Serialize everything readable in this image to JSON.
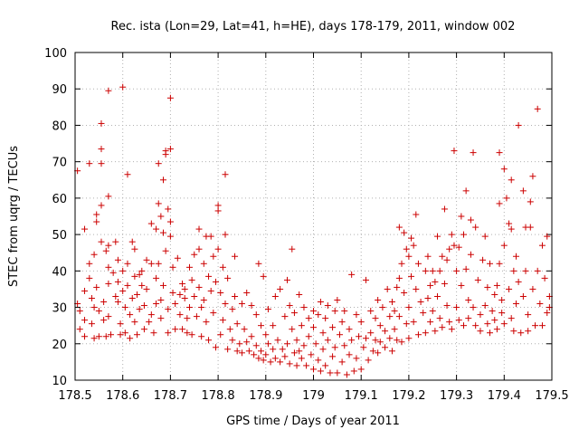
{
  "chart_data": {
    "type": "scatter",
    "title": "Rec. ista (Lon=29, Lat=41, h=HE), days 178-179, 2011, window 002",
    "xlabel": "GPS time / Days of year 2011",
    "ylabel": "STEC from uqrg / TECUs",
    "xlim": [
      178.5,
      179.5
    ],
    "ylim": [
      10,
      100
    ],
    "x_ticks": [
      178.5,
      178.6,
      178.7,
      178.8,
      178.9,
      179.0,
      179.1,
      179.2,
      179.3,
      179.4,
      179.5
    ],
    "x_tick_labels": [
      "178.5",
      "178.6",
      "178.7",
      "178.8",
      "178.9",
      "179",
      "179.1",
      "179.2",
      "179.3",
      "179.4",
      "179.5"
    ],
    "y_ticks": [
      10,
      20,
      30,
      40,
      50,
      60,
      70,
      80,
      90,
      100
    ],
    "y_tick_labels": [
      "10",
      "20",
      "30",
      "40",
      "50",
      "60",
      "70",
      "80",
      "90",
      "100"
    ],
    "grid": "dotted",
    "marker": "+",
    "marker_color": "#cc0000",
    "points": [
      [
        178.505,
        67.5
      ],
      [
        178.505,
        31
      ],
      [
        178.51,
        29
      ],
      [
        178.51,
        24
      ],
      [
        178.52,
        51.5
      ],
      [
        178.52,
        34.5
      ],
      [
        178.52,
        26.5
      ],
      [
        178.52,
        22
      ],
      [
        178.53,
        69.5
      ],
      [
        178.53,
        42
      ],
      [
        178.53,
        38
      ],
      [
        178.535,
        32.5
      ],
      [
        178.535,
        25.5
      ],
      [
        178.54,
        44.5
      ],
      [
        178.54,
        30
      ],
      [
        178.54,
        21.5
      ],
      [
        178.545,
        55.5
      ],
      [
        178.545,
        53.5
      ],
      [
        178.545,
        35.5
      ],
      [
        178.55,
        29
      ],
      [
        178.55,
        22
      ],
      [
        178.555,
        80.5
      ],
      [
        178.555,
        73.5
      ],
      [
        178.555,
        69.5
      ],
      [
        178.555,
        58
      ],
      [
        178.555,
        48
      ],
      [
        178.56,
        31.5
      ],
      [
        178.56,
        26.5
      ],
      [
        178.565,
        45.5
      ],
      [
        178.565,
        22
      ],
      [
        178.57,
        89.5
      ],
      [
        178.57,
        60.5
      ],
      [
        178.57,
        47
      ],
      [
        178.57,
        41
      ],
      [
        178.57,
        36.5
      ],
      [
        178.57,
        27.5
      ],
      [
        178.575,
        22.5
      ],
      [
        178.58,
        39.5
      ],
      [
        178.585,
        48
      ],
      [
        178.585,
        33
      ],
      [
        178.59,
        43
      ],
      [
        178.59,
        37
      ],
      [
        178.59,
        31.5
      ],
      [
        178.595,
        25.5
      ],
      [
        178.595,
        22.5
      ],
      [
        178.6,
        90.5
      ],
      [
        178.6,
        40
      ],
      [
        178.6,
        34.5
      ],
      [
        178.605,
        30
      ],
      [
        178.605,
        23
      ],
      [
        178.61,
        66.5
      ],
      [
        178.61,
        42
      ],
      [
        178.61,
        36
      ],
      [
        178.615,
        28
      ],
      [
        178.615,
        21.5
      ],
      [
        178.62,
        48
      ],
      [
        178.62,
        32.5
      ],
      [
        178.625,
        46
      ],
      [
        178.625,
        38.5
      ],
      [
        178.625,
        26
      ],
      [
        178.63,
        33.5
      ],
      [
        178.63,
        22.5
      ],
      [
        178.635,
        39
      ],
      [
        178.635,
        29.5
      ],
      [
        178.64,
        40
      ],
      [
        178.64,
        36
      ],
      [
        178.645,
        30.5
      ],
      [
        178.645,
        24
      ],
      [
        178.65,
        43
      ],
      [
        178.65,
        35
      ],
      [
        178.655,
        26
      ],
      [
        178.66,
        53
      ],
      [
        178.66,
        42
      ],
      [
        178.66,
        28
      ],
      [
        178.665,
        23
      ],
      [
        178.67,
        51.5
      ],
      [
        178.67,
        38
      ],
      [
        178.67,
        31
      ],
      [
        178.675,
        69.5
      ],
      [
        178.675,
        58.5
      ],
      [
        178.675,
        42
      ],
      [
        178.68,
        55
      ],
      [
        178.68,
        32
      ],
      [
        178.68,
        27
      ],
      [
        178.685,
        65
      ],
      [
        178.685,
        50.5
      ],
      [
        178.685,
        36
      ],
      [
        178.69,
        73
      ],
      [
        178.69,
        72
      ],
      [
        178.69,
        45.5
      ],
      [
        178.695,
        57
      ],
      [
        178.695,
        29.5
      ],
      [
        178.695,
        23
      ],
      [
        178.7,
        73.5
      ],
      [
        178.7,
        87.5
      ],
      [
        178.7,
        53.5
      ],
      [
        178.7,
        49.5
      ],
      [
        178.705,
        41
      ],
      [
        178.705,
        34
      ],
      [
        178.71,
        31
      ],
      [
        178.71,
        24
      ],
      [
        178.715,
        43.5
      ],
      [
        178.72,
        33.5
      ],
      [
        178.72,
        28
      ],
      [
        178.725,
        36.5
      ],
      [
        178.725,
        24
      ],
      [
        178.73,
        35
      ],
      [
        178.73,
        32.5
      ],
      [
        178.735,
        27
      ],
      [
        178.735,
        23
      ],
      [
        178.74,
        41
      ],
      [
        178.74,
        30
      ],
      [
        178.745,
        37.5
      ],
      [
        178.745,
        22.5
      ],
      [
        178.75,
        44.5
      ],
      [
        178.75,
        33
      ],
      [
        178.755,
        27.5
      ],
      [
        178.76,
        51.5
      ],
      [
        178.76,
        46
      ],
      [
        178.76,
        35.5
      ],
      [
        178.765,
        30
      ],
      [
        178.765,
        22
      ],
      [
        178.77,
        42
      ],
      [
        178.77,
        32
      ],
      [
        178.775,
        49.5
      ],
      [
        178.775,
        26
      ],
      [
        178.78,
        38.5
      ],
      [
        178.78,
        21
      ],
      [
        178.785,
        49.5
      ],
      [
        178.785,
        34.5
      ],
      [
        178.79,
        44
      ],
      [
        178.79,
        28.5
      ],
      [
        178.795,
        37
      ],
      [
        178.795,
        19
      ],
      [
        178.8,
        58
      ],
      [
        178.8,
        56.5
      ],
      [
        178.8,
        46
      ],
      [
        178.805,
        34
      ],
      [
        178.805,
        22.5
      ],
      [
        178.81,
        41
      ],
      [
        178.81,
        26.5
      ],
      [
        178.815,
        66.5
      ],
      [
        178.815,
        50
      ],
      [
        178.815,
        31
      ],
      [
        178.82,
        38
      ],
      [
        178.82,
        18.5
      ],
      [
        178.825,
        24
      ],
      [
        178.83,
        29.5
      ],
      [
        178.83,
        21
      ],
      [
        178.835,
        44
      ],
      [
        178.835,
        33
      ],
      [
        178.84,
        25.5
      ],
      [
        178.84,
        18
      ],
      [
        178.845,
        20
      ],
      [
        178.85,
        31
      ],
      [
        178.85,
        17.5
      ],
      [
        178.855,
        24
      ],
      [
        178.86,
        34
      ],
      [
        178.86,
        20.5
      ],
      [
        178.865,
        18
      ],
      [
        178.87,
        30.5
      ],
      [
        178.87,
        22
      ],
      [
        178.875,
        17
      ],
      [
        178.88,
        28
      ],
      [
        178.88,
        19.5
      ],
      [
        178.885,
        42
      ],
      [
        178.885,
        16
      ],
      [
        178.89,
        25
      ],
      [
        178.89,
        18
      ],
      [
        178.895,
        38.5
      ],
      [
        178.895,
        15.5
      ],
      [
        178.9,
        22.5
      ],
      [
        178.9,
        17
      ],
      [
        178.905,
        29.5
      ],
      [
        178.905,
        20
      ],
      [
        178.91,
        15
      ],
      [
        178.915,
        25
      ],
      [
        178.915,
        18.5
      ],
      [
        178.92,
        33
      ],
      [
        178.92,
        16
      ],
      [
        178.925,
        21
      ],
      [
        178.93,
        35
      ],
      [
        178.93,
        15
      ],
      [
        178.935,
        18.5
      ],
      [
        178.94,
        27.5
      ],
      [
        178.94,
        16.5
      ],
      [
        178.945,
        37.5
      ],
      [
        178.945,
        20
      ],
      [
        178.95,
        30.5
      ],
      [
        178.95,
        14.5
      ],
      [
        178.955,
        46
      ],
      [
        178.955,
        24
      ],
      [
        178.96,
        17.5
      ],
      [
        178.96,
        28.5
      ],
      [
        178.965,
        21
      ],
      [
        178.965,
        14
      ],
      [
        178.97,
        33.5
      ],
      [
        178.97,
        18
      ],
      [
        178.975,
        25
      ],
      [
        178.975,
        16
      ],
      [
        178.98,
        30
      ],
      [
        178.98,
        19.5
      ],
      [
        178.985,
        14
      ],
      [
        178.99,
        27
      ],
      [
        178.99,
        22
      ],
      [
        178.995,
        17
      ],
      [
        179.0,
        29
      ],
      [
        179.0,
        24.5
      ],
      [
        179.0,
        13
      ],
      [
        179.005,
        20
      ],
      [
        179.01,
        28
      ],
      [
        179.01,
        15.5
      ],
      [
        179.015,
        31.5
      ],
      [
        179.015,
        12.5
      ],
      [
        179.02,
        23
      ],
      [
        179.02,
        18.5
      ],
      [
        179.025,
        27
      ],
      [
        179.025,
        14
      ],
      [
        179.03,
        30.5
      ],
      [
        179.03,
        21
      ],
      [
        179.035,
        12
      ],
      [
        179.04,
        24.5
      ],
      [
        179.04,
        16.5
      ],
      [
        179.045,
        29
      ],
      [
        179.045,
        19
      ],
      [
        179.05,
        32
      ],
      [
        179.05,
        12
      ],
      [
        179.055,
        22.5
      ],
      [
        179.06,
        26
      ],
      [
        179.06,
        15
      ],
      [
        179.065,
        29
      ],
      [
        179.065,
        19.5
      ],
      [
        179.07,
        11.5
      ],
      [
        179.075,
        24
      ],
      [
        179.075,
        17
      ],
      [
        179.08,
        39
      ],
      [
        179.08,
        21
      ],
      [
        179.085,
        12.5
      ],
      [
        179.09,
        28
      ],
      [
        179.09,
        16
      ],
      [
        179.095,
        22
      ],
      [
        179.1,
        26
      ],
      [
        179.1,
        13
      ],
      [
        179.105,
        19
      ],
      [
        179.11,
        37.5
      ],
      [
        179.11,
        21.5
      ],
      [
        179.115,
        15.5
      ],
      [
        179.12,
        29
      ],
      [
        179.12,
        23
      ],
      [
        179.125,
        18
      ],
      [
        179.13,
        27
      ],
      [
        179.13,
        21
      ],
      [
        179.135,
        32
      ],
      [
        179.135,
        17.5
      ],
      [
        179.14,
        25
      ],
      [
        179.14,
        20.5
      ],
      [
        179.145,
        30
      ],
      [
        179.15,
        23.5
      ],
      [
        179.15,
        19
      ],
      [
        179.155,
        35
      ],
      [
        179.16,
        27.5
      ],
      [
        179.16,
        21.5
      ],
      [
        179.165,
        31.5
      ],
      [
        179.165,
        18
      ],
      [
        179.17,
        29
      ],
      [
        179.17,
        24
      ],
      [
        179.175,
        35.5
      ],
      [
        179.175,
        21
      ],
      [
        179.18,
        52
      ],
      [
        179.18,
        38
      ],
      [
        179.18,
        27.5
      ],
      [
        179.185,
        42
      ],
      [
        179.185,
        20.5
      ],
      [
        179.19,
        50.5
      ],
      [
        179.19,
        34
      ],
      [
        179.195,
        46
      ],
      [
        179.195,
        25.5
      ],
      [
        179.2,
        44
      ],
      [
        179.2,
        30
      ],
      [
        179.2,
        21.5
      ],
      [
        179.205,
        49
      ],
      [
        179.205,
        38.5
      ],
      [
        179.21,
        47
      ],
      [
        179.21,
        26
      ],
      [
        179.215,
        55.5
      ],
      [
        179.215,
        35
      ],
      [
        179.22,
        42
      ],
      [
        179.22,
        22.5
      ],
      [
        179.225,
        31.5
      ],
      [
        179.23,
        28.5
      ],
      [
        179.235,
        40
      ],
      [
        179.235,
        23
      ],
      [
        179.24,
        44
      ],
      [
        179.24,
        32.5
      ],
      [
        179.245,
        36
      ],
      [
        179.245,
        26
      ],
      [
        179.25,
        40
      ],
      [
        179.25,
        29
      ],
      [
        179.255,
        37
      ],
      [
        179.255,
        23.5
      ],
      [
        179.26,
        49.5
      ],
      [
        179.26,
        33
      ],
      [
        179.265,
        40
      ],
      [
        179.265,
        27
      ],
      [
        179.27,
        44
      ],
      [
        179.27,
        24.5
      ],
      [
        179.275,
        57
      ],
      [
        179.275,
        36.5
      ],
      [
        179.28,
        43
      ],
      [
        179.28,
        30.5
      ],
      [
        179.285,
        46
      ],
      [
        179.285,
        26
      ],
      [
        179.29,
        50
      ],
      [
        179.29,
        24
      ],
      [
        179.295,
        73
      ],
      [
        179.295,
        47
      ],
      [
        179.3,
        40
      ],
      [
        179.3,
        30
      ],
      [
        179.305,
        46.5
      ],
      [
        179.305,
        26.5
      ],
      [
        179.31,
        55
      ],
      [
        179.31,
        36
      ],
      [
        179.315,
        50
      ],
      [
        179.315,
        25
      ],
      [
        179.32,
        62
      ],
      [
        179.32,
        40.5
      ],
      [
        179.325,
        32
      ],
      [
        179.325,
        27
      ],
      [
        179.33,
        54
      ],
      [
        179.33,
        44.5
      ],
      [
        179.335,
        72.5
      ],
      [
        179.335,
        30
      ],
      [
        179.34,
        52
      ],
      [
        179.34,
        25
      ],
      [
        179.345,
        37.5
      ],
      [
        179.35,
        28
      ],
      [
        179.35,
        23.5
      ],
      [
        179.355,
        43
      ],
      [
        179.36,
        49.5
      ],
      [
        179.36,
        30.5
      ],
      [
        179.365,
        35.5
      ],
      [
        179.365,
        25.5
      ],
      [
        179.37,
        42
      ],
      [
        179.37,
        23
      ],
      [
        179.375,
        29
      ],
      [
        179.38,
        33.5
      ],
      [
        179.38,
        26.5
      ],
      [
        179.385,
        36
      ],
      [
        179.385,
        24
      ],
      [
        179.39,
        58.5
      ],
      [
        179.39,
        72.5
      ],
      [
        179.39,
        42
      ],
      [
        179.395,
        32
      ],
      [
        179.395,
        28.5
      ],
      [
        179.4,
        68
      ],
      [
        179.4,
        47
      ],
      [
        179.4,
        25.5
      ],
      [
        179.405,
        60
      ],
      [
        179.41,
        53
      ],
      [
        179.41,
        35
      ],
      [
        179.415,
        65
      ],
      [
        179.415,
        51.5
      ],
      [
        179.415,
        27
      ],
      [
        179.42,
        40
      ],
      [
        179.42,
        23.5
      ],
      [
        179.425,
        44
      ],
      [
        179.425,
        31
      ],
      [
        179.43,
        80
      ],
      [
        179.43,
        37
      ],
      [
        179.435,
        23
      ],
      [
        179.44,
        62
      ],
      [
        179.44,
        33
      ],
      [
        179.445,
        52
      ],
      [
        179.445,
        40
      ],
      [
        179.45,
        28
      ],
      [
        179.45,
        23.5
      ],
      [
        179.455,
        52
      ],
      [
        179.455,
        59
      ],
      [
        179.46,
        66
      ],
      [
        179.46,
        35
      ],
      [
        179.465,
        25
      ],
      [
        179.47,
        84.5
      ],
      [
        179.47,
        40
      ],
      [
        179.475,
        31
      ],
      [
        179.48,
        47
      ],
      [
        179.48,
        25
      ],
      [
        179.485,
        38
      ],
      [
        179.49,
        49.5
      ],
      [
        179.49,
        28.5
      ],
      [
        179.495,
        33
      ],
      [
        179.495,
        30
      ]
    ]
  }
}
